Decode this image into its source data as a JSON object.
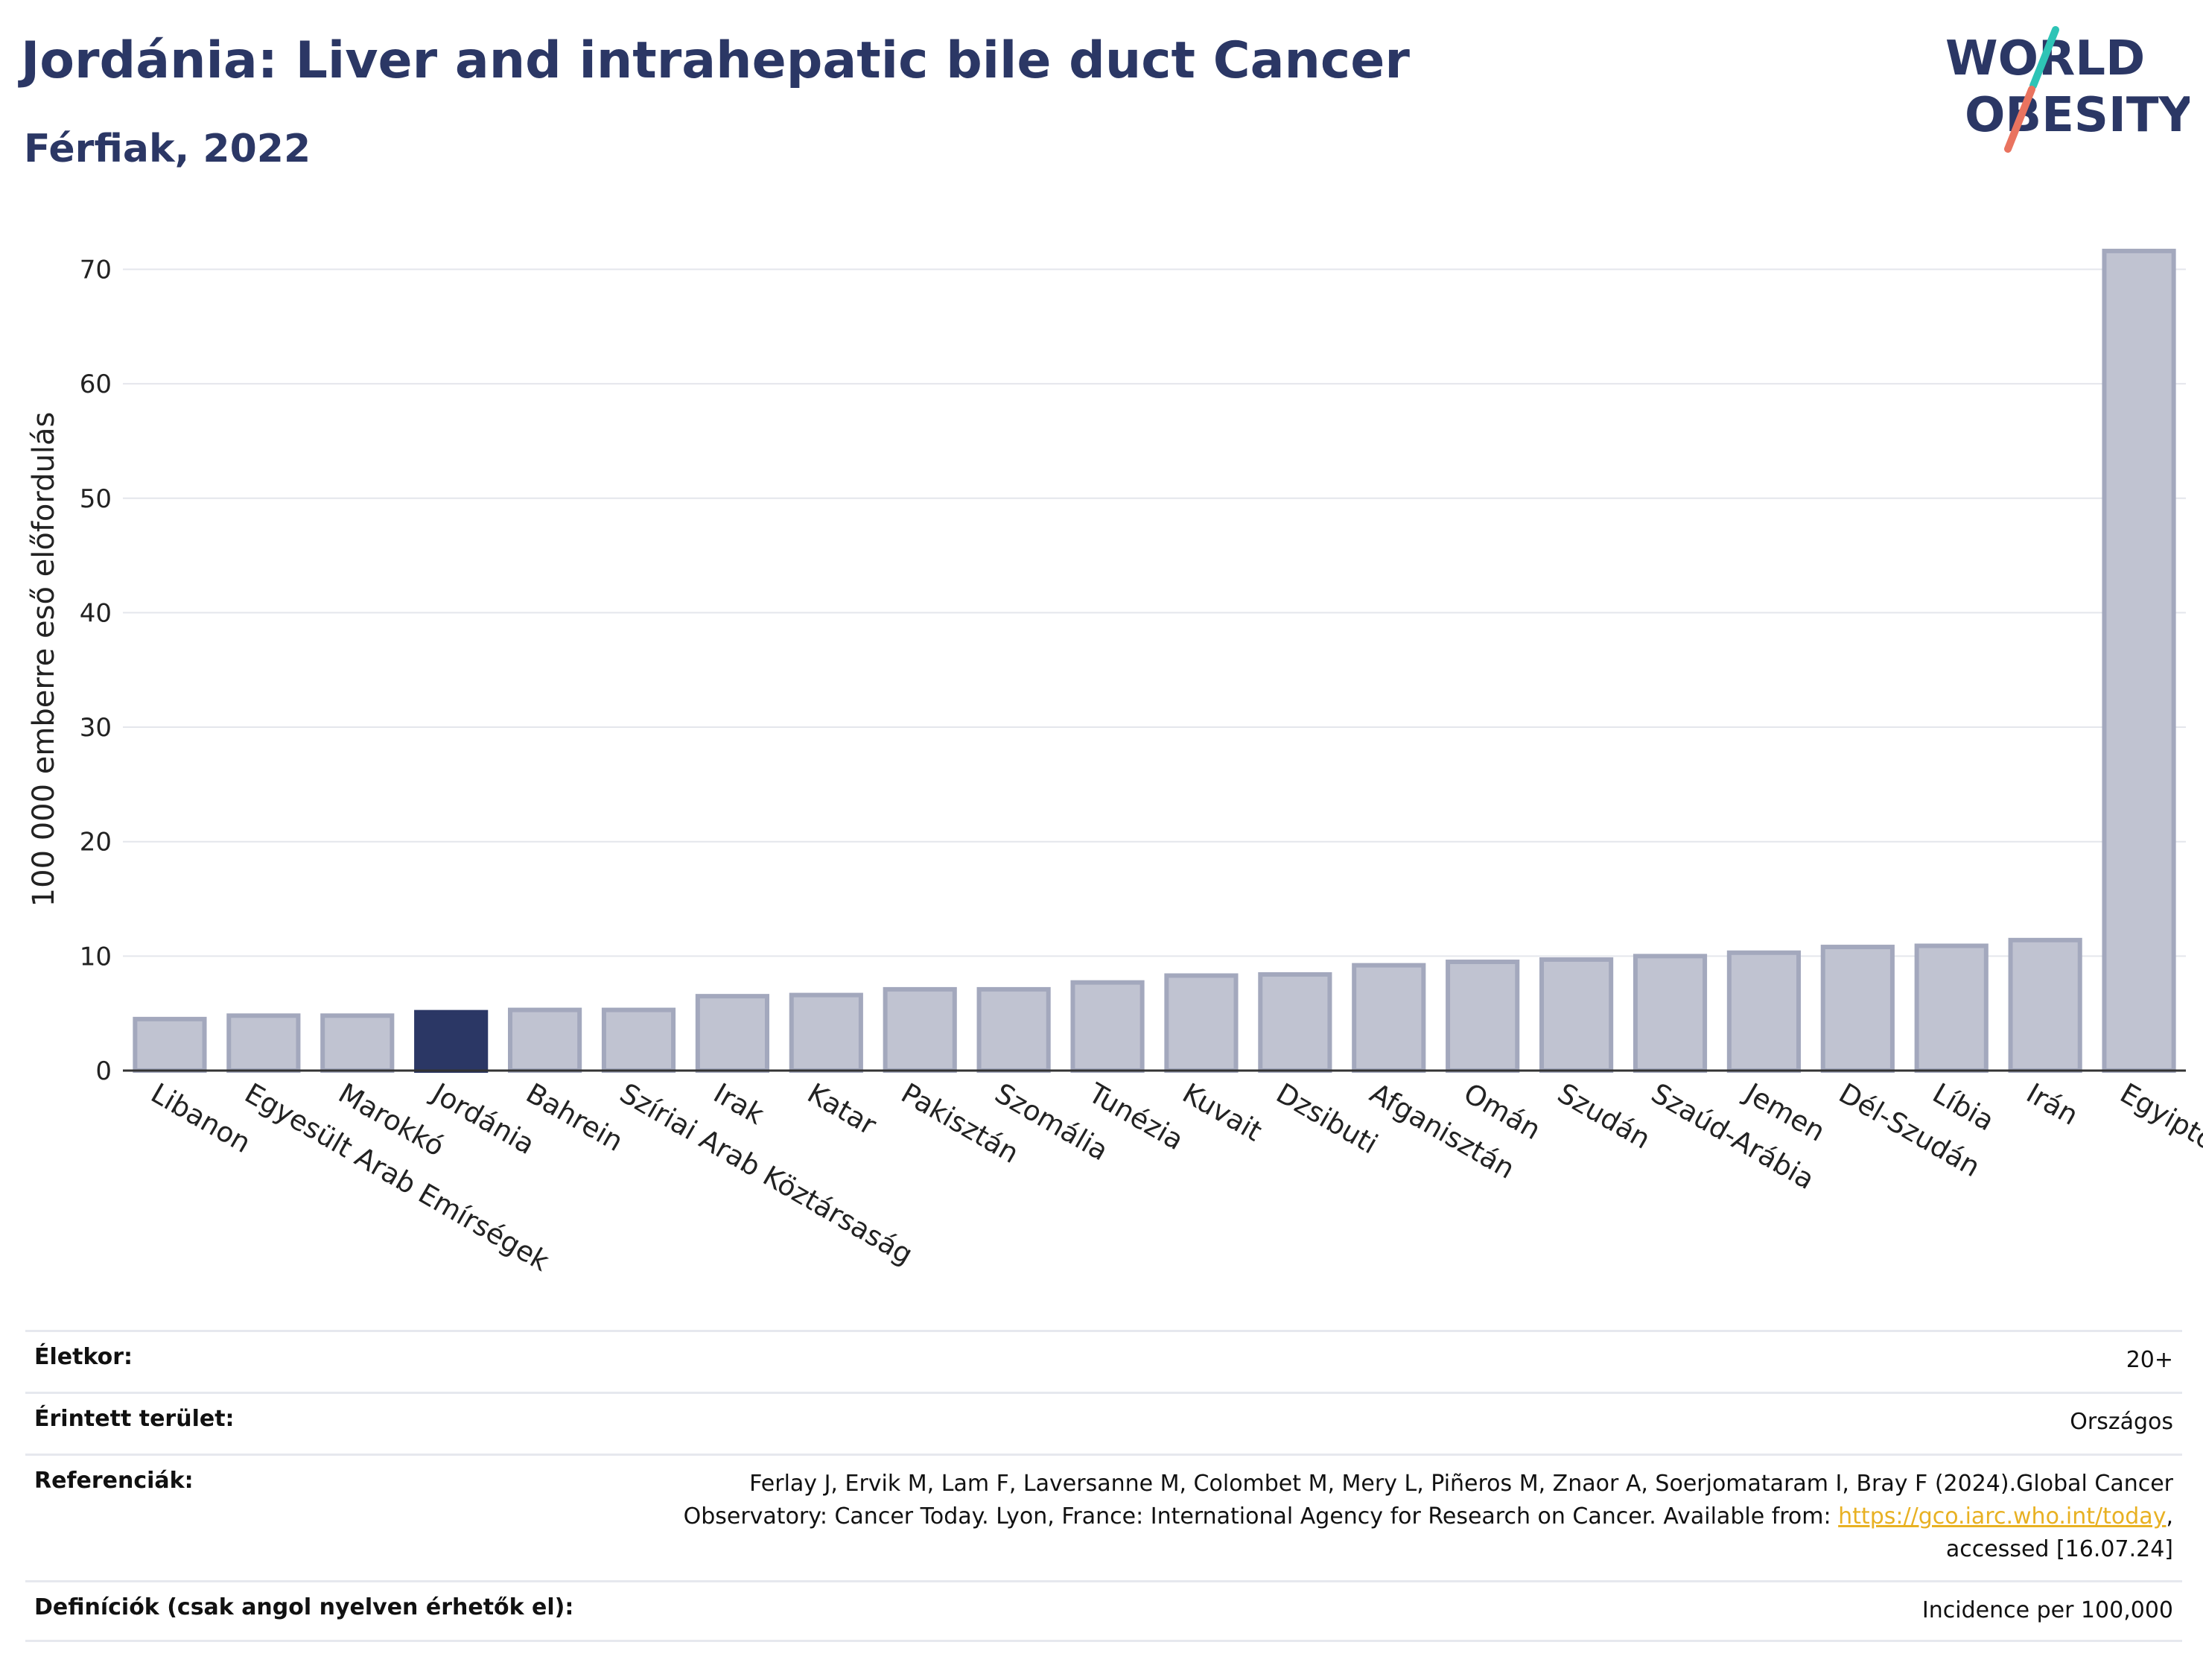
{
  "header": {
    "title": "Jordánia: Liver and intrahepatic bile duct Cancer",
    "subtitle": "Férfiak, 2022"
  },
  "logo": {
    "line1": "WORLD",
    "line2": "OBESITY"
  },
  "colors": {
    "highlight": "#2b3765",
    "bar": "#c0c3d1",
    "bar_stroke": "#a3a8bd",
    "accent_teal": "#2ec4b6",
    "accent_red": "#e9735f"
  },
  "chart_data": {
    "type": "bar",
    "title": "Jordánia: Liver and intrahepatic bile duct Cancer",
    "subtitle": "Férfiak, 2022",
    "xlabel": "",
    "ylabel": "100 000 emberre eső előfordulás",
    "ylim": [
      0,
      74
    ],
    "yticks": [
      0,
      10,
      20,
      30,
      40,
      50,
      60,
      70
    ],
    "grid": true,
    "highlight": "Jordánia",
    "categories": [
      "Libanon",
      "Egyesült Arab Emírségek",
      "Marokkó",
      "Jordánia",
      "Bahrein",
      "Szíriai Arab Köztársaság",
      "Irak",
      "Katar",
      "Pakisztán",
      "Szomália",
      "Tunézia",
      "Kuvait",
      "Dzsibuti",
      "Afganisztán",
      "Omán",
      "Szudán",
      "Szaúd-Arábia",
      "Jemen",
      "Dél-Szudán",
      "Líbia",
      "Irán",
      "Egyiptom"
    ],
    "values": [
      4.5,
      4.8,
      4.8,
      5.1,
      5.3,
      5.3,
      6.5,
      6.6,
      7.1,
      7.1,
      7.7,
      8.3,
      8.4,
      9.2,
      9.5,
      9.7,
      10.0,
      10.3,
      10.8,
      10.9,
      11.4,
      71.6
    ]
  },
  "info": {
    "age_label": "Életkor:",
    "age_value": "20+",
    "area_label": "Érintett terület:",
    "area_value": "Országos",
    "ref_label": "Referenciák:",
    "ref_text1": "Ferlay J, Ervik M, Lam F, Laversanne M, Colombet M, Mery L, Piñeros M, Znaor A, Soerjomataram I, Bray F (2024).Global Cancer",
    "ref_text2": "Observatory: Cancer Today. Lyon, France: International Agency for Research on Cancer. Available from: ",
    "ref_link": "https://gco.iarc.who.int/today",
    "ref_text3": ",",
    "ref_text4": "accessed [16.07.24]",
    "def_label": "Definíciók (csak angol nyelven érhetők el):",
    "def_value": "Incidence per 100,000"
  }
}
